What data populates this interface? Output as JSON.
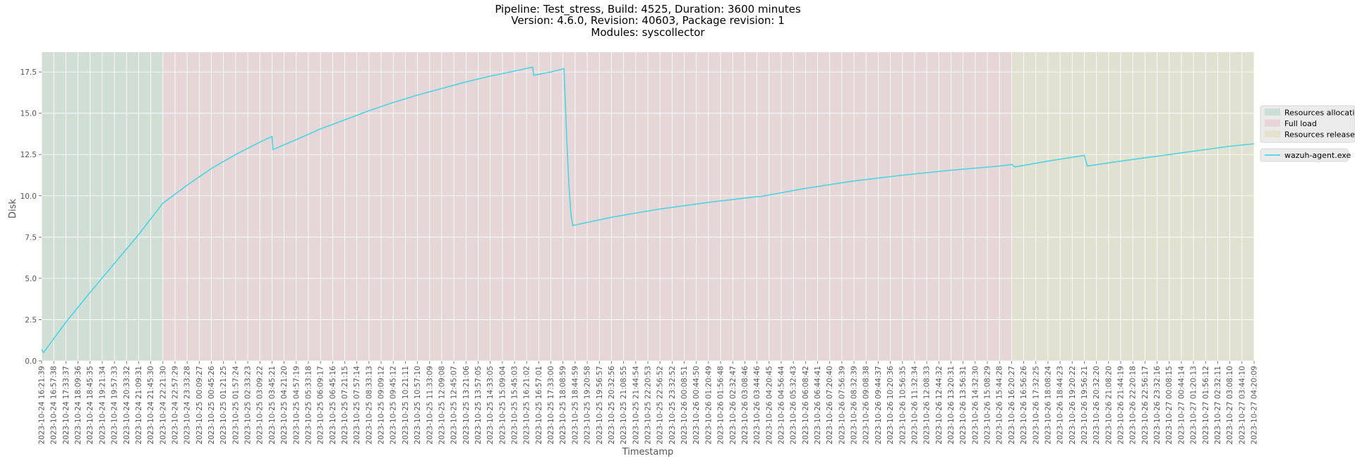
{
  "chart_data": {
    "type": "line",
    "title": [
      "Pipeline: Test_stress, Build: 4525, Duration: 3600 minutes",
      "Version: 4.6.0, Revision: 40603, Package revision: 1",
      "Modules: syscollector"
    ],
    "xlabel": "Timestamp",
    "ylabel": "Disk",
    "ylim": [
      0,
      18.7
    ],
    "yticks": [
      "0.0",
      "2.5",
      "5.0",
      "7.5",
      "10.0",
      "12.5",
      "15.0",
      "17.5"
    ],
    "grid": true,
    "legend_position": "right",
    "x_ticks": [
      "2023-10-24 16:21:39",
      "2023-10-24 16:57:38",
      "2023-10-24 17:33:37",
      "2023-10-24 18:09:36",
      "2023-10-24 18:45:35",
      "2023-10-24 19:21:34",
      "2023-10-24 19:57:33",
      "2023-10-24 20:33:32",
      "2023-10-24 21:09:31",
      "2023-10-24 21:45:30",
      "2023-10-24 22:21:30",
      "2023-10-24 22:57:29",
      "2023-10-24 23:33:28",
      "2023-10-25 00:09:27",
      "2023-10-25 00:45:26",
      "2023-10-25 01:21:25",
      "2023-10-25 01:57:24",
      "2023-10-25 02:33:23",
      "2023-10-25 03:09:22",
      "2023-10-25 03:45:21",
      "2023-10-25 04:21:20",
      "2023-10-25 04:57:19",
      "2023-10-25 05:33:18",
      "2023-10-25 06:09:17",
      "2023-10-25 06:45:16",
      "2023-10-25 07:21:15",
      "2023-10-25 07:57:14",
      "2023-10-25 08:33:13",
      "2023-10-25 09:09:12",
      "2023-10-25 09:45:12",
      "2023-10-25 10:21:11",
      "2023-10-25 10:57:10",
      "2023-10-25 11:33:09",
      "2023-10-25 12:09:08",
      "2023-10-25 12:45:07",
      "2023-10-25 13:21:06",
      "2023-10-25 13:57:05",
      "2023-10-25 14:33:05",
      "2023-10-25 15:09:04",
      "2023-10-25 15:45:03",
      "2023-10-25 16:21:02",
      "2023-10-25 16:57:01",
      "2023-10-25 17:33:00",
      "2023-10-25 18:08:59",
      "2023-10-25 18:44:59",
      "2023-10-25 19:20:58",
      "2023-10-25 19:56:57",
      "2023-10-25 20:32:56",
      "2023-10-25 21:08:55",
      "2023-10-25 21:44:54",
      "2023-10-25 22:20:53",
      "2023-10-25 22:56:52",
      "2023-10-25 23:32:52",
      "2023-10-26 00:08:51",
      "2023-10-26 00:44:50",
      "2023-10-26 01:20:49",
      "2023-10-26 01:56:48",
      "2023-10-26 02:32:47",
      "2023-10-26 03:08:46",
      "2023-10-26 03:44:46",
      "2023-10-26 04:20:45",
      "2023-10-26 04:56:44",
      "2023-10-26 05:32:43",
      "2023-10-26 06:08:42",
      "2023-10-26 06:44:41",
      "2023-10-26 07:20:40",
      "2023-10-26 07:56:39",
      "2023-10-26 08:32:39",
      "2023-10-26 09:08:38",
      "2023-10-26 09:44:37",
      "2023-10-26 10:20:36",
      "2023-10-26 10:56:35",
      "2023-10-26 11:32:34",
      "2023-10-26 12:08:33",
      "2023-10-26 12:44:32",
      "2023-10-26 13:20:31",
      "2023-10-26 13:56:31",
      "2023-10-26 14:32:30",
      "2023-10-26 15:08:29",
      "2023-10-26 15:44:28",
      "2023-10-26 16:20:27",
      "2023-10-26 16:56:26",
      "2023-10-26 17:32:25",
      "2023-10-26 18:08:24",
      "2023-10-26 18:44:23",
      "2023-10-26 19:20:22",
      "2023-10-26 19:56:21",
      "2023-10-26 20:32:20",
      "2023-10-26 21:08:20",
      "2023-10-26 21:44:19",
      "2023-10-26 22:20:18",
      "2023-10-26 22:56:17",
      "2023-10-26 23:32:16",
      "2023-10-27 00:08:15",
      "2023-10-27 00:44:14",
      "2023-10-27 01:20:13",
      "2023-10-27 01:56:12",
      "2023-10-27 02:32:11",
      "2023-10-27 03:08:10",
      "2023-10-27 03:44:10",
      "2023-10-27 04:20:09"
    ],
    "phases": [
      {
        "name": "Resources allocation",
        "start": "2023-10-24 16:21:39",
        "end": "2023-10-24 22:21:30",
        "color": "#b8d4c4"
      },
      {
        "name": "Full load",
        "start": "2023-10-24 22:21:30",
        "end": "2023-10-26 16:20:27",
        "color": "#e4c4c8"
      },
      {
        "name": "Resources release",
        "start": "2023-10-26 16:20:27",
        "end": "2023-10-27 04:20:09",
        "color": "#dcdcba"
      }
    ],
    "series": [
      {
        "name": "wazuh-agent.exe",
        "color": "#4dd4e0",
        "points": [
          [
            "2023-10-24 16:21:39",
            0.7
          ],
          [
            "2023-10-24 16:27:00",
            0.5
          ],
          [
            "2023-10-24 17:33:37",
            2.35
          ],
          [
            "2023-10-24 18:45:35",
            4.15
          ],
          [
            "2023-10-24 19:57:33",
            5.9
          ],
          [
            "2023-10-24 21:09:31",
            7.65
          ],
          [
            "2023-10-24 22:21:30",
            9.55
          ],
          [
            "2023-10-24 23:33:28",
            10.65
          ],
          [
            "2023-10-25 00:45:26",
            11.65
          ],
          [
            "2023-10-25 01:57:24",
            12.5
          ],
          [
            "2023-10-25 03:09:22",
            13.25
          ],
          [
            "2023-10-25 03:45:21",
            13.6
          ],
          [
            "2023-10-25 03:48:00",
            12.8
          ],
          [
            "2023-10-25 04:57:19",
            13.4
          ],
          [
            "2023-10-25 06:09:17",
            14.05
          ],
          [
            "2023-10-25 07:21:15",
            14.6
          ],
          [
            "2023-10-25 08:33:13",
            15.15
          ],
          [
            "2023-10-25 09:45:12",
            15.65
          ],
          [
            "2023-10-25 10:57:10",
            16.1
          ],
          [
            "2023-10-25 12:09:08",
            16.5
          ],
          [
            "2023-10-25 13:21:06",
            16.9
          ],
          [
            "2023-10-25 14:33:05",
            17.25
          ],
          [
            "2023-10-25 15:45:03",
            17.55
          ],
          [
            "2023-10-25 16:39:00",
            17.8
          ],
          [
            "2023-10-25 16:42:00",
            17.3
          ],
          [
            "2023-10-25 17:33:00",
            17.5
          ],
          [
            "2023-10-25 18:12:00",
            17.7
          ],
          [
            "2023-10-25 18:20:00",
            13.5
          ],
          [
            "2023-10-25 18:27:00",
            10.5
          ],
          [
            "2023-10-25 18:33:00",
            8.8
          ],
          [
            "2023-10-25 18:38:00",
            8.2
          ],
          [
            "2023-10-25 20:32:56",
            8.7
          ],
          [
            "2023-10-25 22:56:52",
            9.2
          ],
          [
            "2023-10-26 01:20:49",
            9.6
          ],
          [
            "2023-10-26 03:44:46",
            9.95
          ],
          [
            "2023-10-26 03:55:00",
            9.95
          ],
          [
            "2023-10-26 06:08:42",
            10.45
          ],
          [
            "2023-10-26 08:32:39",
            10.9
          ],
          [
            "2023-10-26 10:56:35",
            11.25
          ],
          [
            "2023-10-26 13:20:31",
            11.55
          ],
          [
            "2023-10-26 15:44:28",
            11.8
          ],
          [
            "2023-10-26 16:20:27",
            11.9
          ],
          [
            "2023-10-26 16:30:00",
            11.75
          ],
          [
            "2023-10-26 16:45:00",
            11.8
          ],
          [
            "2023-10-26 18:08:24",
            12.1
          ],
          [
            "2023-10-26 19:56:21",
            12.45
          ],
          [
            "2023-10-26 20:05:00",
            11.8
          ],
          [
            "2023-10-26 21:44:19",
            12.1
          ],
          [
            "2023-10-26 23:32:16",
            12.4
          ],
          [
            "2023-10-27 01:20:13",
            12.7
          ],
          [
            "2023-10-27 03:08:10",
            13.0
          ],
          [
            "2023-10-27 04:20:09",
            13.15
          ]
        ]
      }
    ]
  }
}
